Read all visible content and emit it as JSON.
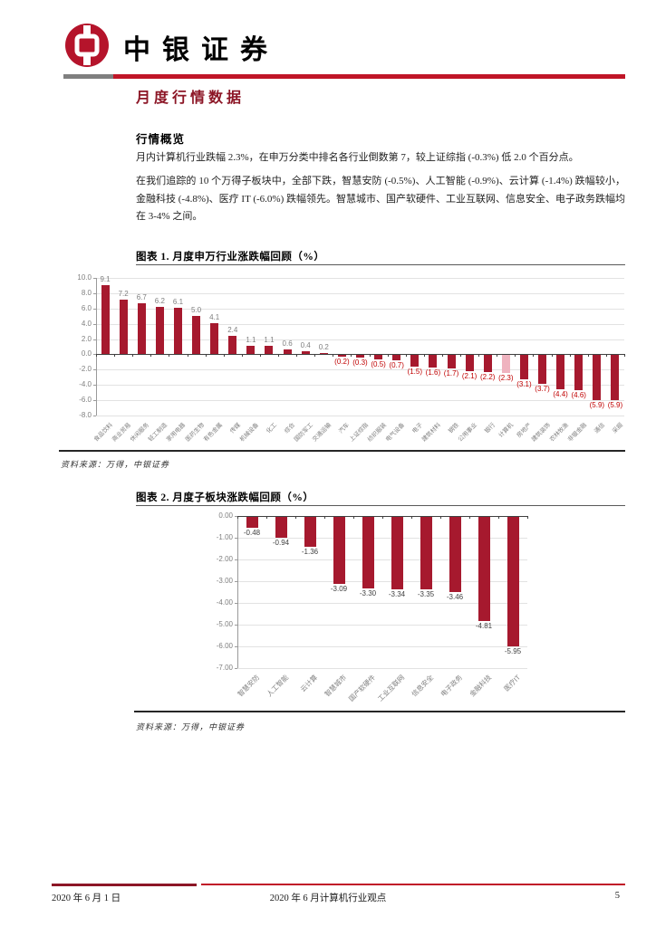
{
  "header": {
    "brand": "中银证券",
    "logo": "boc-logo"
  },
  "section": {
    "title": "月度行情数据",
    "subsection": "行情概览",
    "paragraphs": [
      "月内计算机行业跌幅 2.3%，在申万分类中排名各行业倒数第 7，较上证综指 (-0.3%) 低 2.0 个百分点。",
      "在我们追踪的 10 个万得子板块中，全部下跌，智慧安防 (-0.5%)、人工智能 (-0.9%)、云计算 (-1.4%) 跌幅较小，金融科技 (-4.8%)、医疗 IT (-6.0%) 跌幅领先。智慧城市、国产软硬件、工业互联网、信息安全、电子政务跌幅均在 3-4% 之间。"
    ]
  },
  "chart_data": [
    {
      "type": "bar",
      "title": "图表 1. 月度申万行业涨跌幅回顾（%）",
      "categories": [
        "食品饮料",
        "商业贸易",
        "休闲服务",
        "轻工制造",
        "家用电器",
        "医药生物",
        "有色金属",
        "传媒",
        "机械设备",
        "化工",
        "综合",
        "国防军工",
        "交通运输",
        "汽车",
        "上证综指",
        "纺织服装",
        "电气设备",
        "电子",
        "建筑材料",
        "钢铁",
        "公用事业",
        "银行",
        "计算机",
        "房地产",
        "建筑装饰",
        "农林牧渔",
        "非银金融",
        "通信",
        "采掘"
      ],
      "values": [
        9.1,
        7.2,
        6.7,
        6.2,
        6.1,
        5.0,
        4.1,
        2.4,
        1.1,
        1.1,
        0.6,
        0.4,
        0.2,
        -0.2,
        -0.3,
        -0.5,
        -0.7,
        -1.5,
        -1.6,
        -1.7,
        -2.1,
        -2.2,
        -2.3,
        -3.1,
        -3.7,
        -4.4,
        -4.6,
        -5.9,
        -5.9
      ],
      "highlight_index": 22,
      "highlight_category": "计算机",
      "ylim": [
        -8.0,
        10.0
      ],
      "ytick_step": 2.0,
      "grid": true,
      "legend": "none",
      "source": "资料来源：万得，中银证券"
    },
    {
      "type": "bar",
      "title": "图表 2. 月度子板块涨跌幅回顾（%）",
      "categories": [
        "智慧安防",
        "人工智能",
        "云计算",
        "智慧城市",
        "国产软硬件",
        "工业互联网",
        "信息安全",
        "电子政务",
        "金融科技",
        "医疗IT"
      ],
      "values": [
        -0.48,
        -0.94,
        -1.36,
        -3.09,
        -3.3,
        -3.34,
        -3.35,
        -3.46,
        -4.81,
        -5.95
      ],
      "ylim": [
        -7.0,
        0.0
      ],
      "ytick_step": 1.0,
      "grid": true,
      "legend": "none",
      "source": "资料来源：万得，中银证券"
    }
  ],
  "colors": {
    "bar": "#a6192e",
    "bar_highlight": "#efb3bf",
    "neg_label": "#c00000",
    "pos_label": "#7f7f7f",
    "value_label2": "#404040",
    "accent_red": "#c01527",
    "title_red": "#8c1626"
  },
  "footer": {
    "date": "2020 年 6 月 1 日",
    "doc_title": "2020 年 6 月计算机行业观点",
    "page": "5"
  }
}
